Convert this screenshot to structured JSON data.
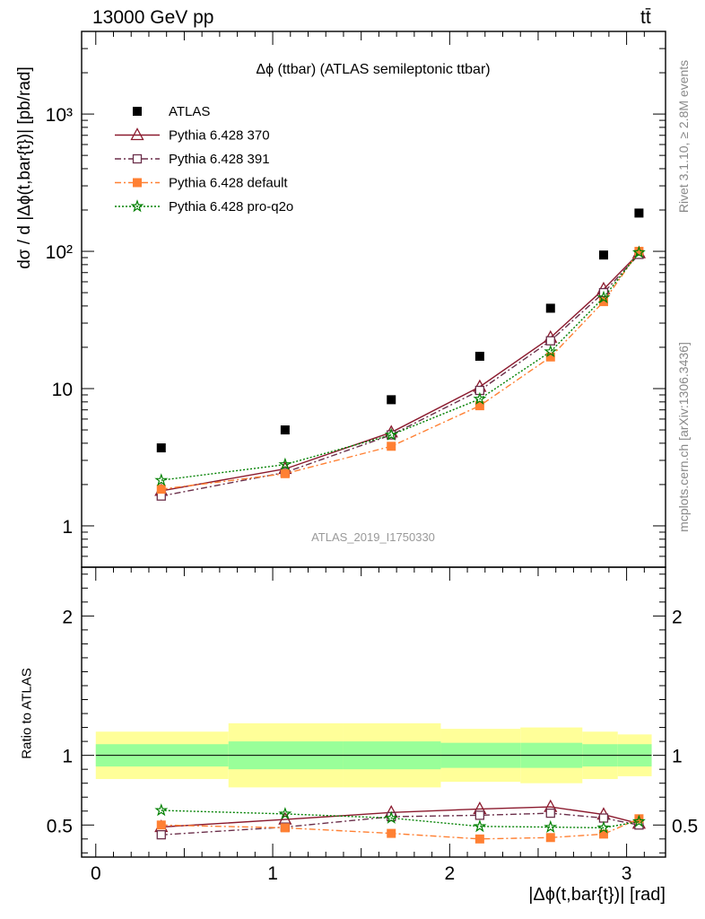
{
  "header": {
    "energy": "13000 GeV pp",
    "process": "tt̄"
  },
  "side_text": {
    "rivet": "Rivet 3.1.10, ≥ 2.8M events",
    "mcplots": "mcplots.cern.ch [arXiv:1306.3436]"
  },
  "chart_data": [
    {
      "type": "scatter",
      "title": "Δϕ (ttbar) (ATLAS semileptonic ttbar)",
      "analysis_label": "ATLAS_2019_I1750330",
      "ylabel": "dσ / d |Δϕ(t,bar{t})| [pb/rad]",
      "yscale": "log",
      "ylim": [
        0.5,
        4000
      ],
      "xlim": [
        -0.08,
        3.22
      ],
      "ytick_labels": [
        "1",
        "10",
        "10²",
        "10³"
      ],
      "legend_placement": "top-left",
      "grid": false,
      "x": [
        0.37,
        1.07,
        1.67,
        2.17,
        2.57,
        2.87,
        3.07
      ],
      "series": [
        {
          "name": "ATLAS",
          "color": "#000000",
          "marker": "square",
          "line": "none",
          "values": [
            3.7,
            5.0,
            8.3,
            17.2,
            38.5,
            94,
            190
          ]
        },
        {
          "name": "Pythia 6.428 370",
          "color": "#8b1a2e",
          "marker": "triangle-open",
          "line": "solid",
          "values": [
            1.8,
            2.6,
            4.8,
            10.3,
            23.5,
            53,
            97
          ]
        },
        {
          "name": "Pythia 6.428 391",
          "color": "#6b2f4a",
          "marker": "square-open",
          "line": "dashdot",
          "values": [
            1.65,
            2.45,
            4.6,
            9.7,
            22.3,
            50,
            95
          ]
        },
        {
          "name": "Pythia 6.428 default",
          "color": "#ff8033",
          "marker": "square",
          "line": "dashdot",
          "values": [
            1.85,
            2.4,
            3.8,
            7.5,
            17.0,
            43,
            100
          ]
        },
        {
          "name": "Pythia 6.428 pro-q2o",
          "color": "#008000",
          "marker": "star",
          "line": "dotted",
          "values": [
            2.15,
            2.8,
            4.6,
            8.4,
            18.6,
            46,
            98
          ]
        }
      ]
    },
    {
      "type": "line",
      "ylabel": "Ratio to ATLAS",
      "xlabel": "|Δϕ(t,bar{t})| [rad]",
      "ylim": [
        0.27,
        2.35
      ],
      "xlim": [
        -0.08,
        3.22
      ],
      "xtick_labels": [
        "0",
        "1",
        "2",
        "3"
      ],
      "ytick_labels": [
        "0.5",
        "1",
        "2"
      ],
      "bins": [
        0,
        0.75,
        1.4,
        1.95,
        2.4,
        2.75,
        2.95,
        3.1416
      ],
      "band_inner": [
        0.08,
        0.1,
        0.1,
        0.09,
        0.09,
        0.08,
        0.08
      ],
      "band_outer": [
        0.17,
        0.23,
        0.23,
        0.19,
        0.2,
        0.17,
        0.15
      ],
      "band_colors": {
        "inner": "#99ff99",
        "outer": "#ffff99"
      },
      "x": [
        0.37,
        1.07,
        1.67,
        2.17,
        2.57,
        2.87,
        3.07
      ],
      "series": [
        {
          "name": "Pythia 6.428 370",
          "color": "#8b1a2e",
          "marker": "triangle-open",
          "line": "solid",
          "values": [
            0.486,
            0.54,
            0.59,
            0.615,
            0.63,
            0.575,
            0.51
          ]
        },
        {
          "name": "Pythia 6.428 391",
          "color": "#6b2f4a",
          "marker": "square-open",
          "line": "dashdot",
          "values": [
            0.43,
            0.485,
            0.56,
            0.57,
            0.585,
            0.55,
            0.5
          ]
        },
        {
          "name": "Pythia 6.428 default",
          "color": "#ff8033",
          "marker": "square",
          "line": "dashdot",
          "values": [
            0.5,
            0.48,
            0.44,
            0.4,
            0.41,
            0.435,
            0.545
          ]
        },
        {
          "name": "Pythia 6.428 pro-q2o",
          "color": "#008000",
          "marker": "star",
          "line": "dotted",
          "values": [
            0.605,
            0.58,
            0.55,
            0.49,
            0.485,
            0.48,
            0.525
          ]
        }
      ]
    }
  ]
}
